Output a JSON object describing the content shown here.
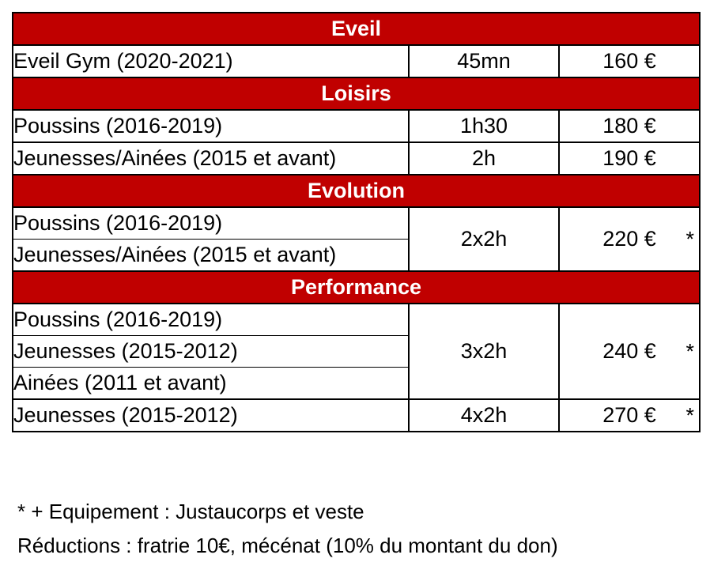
{
  "sections": [
    {
      "title": "Eveil",
      "rows": [
        {
          "name": "Eveil Gym (2020-2021)",
          "duration": "45mn",
          "price": "160 €",
          "asterisk": ""
        }
      ]
    },
    {
      "title": "Loisirs",
      "rows": [
        {
          "name": "Poussins (2016-2019)",
          "duration": "1h30",
          "price": "180 €",
          "asterisk": ""
        },
        {
          "name": "Jeunesses/Ainées (2015 et avant)",
          "duration": "2h",
          "price": "190 €",
          "asterisk": ""
        }
      ]
    },
    {
      "title": "Evolution",
      "groups": [
        {
          "names": [
            "Poussins (2016-2019)",
            "Jeunesses/Ainées (2015 et avant)"
          ],
          "duration": "2x2h",
          "price": "220 €",
          "asterisk": "*"
        }
      ]
    },
    {
      "title": "Performance",
      "groups": [
        {
          "names": [
            "Poussins (2016-2019)",
            "Jeunesses (2015-2012)",
            "Ainées (2011 et avant)"
          ],
          "duration": "3x2h",
          "price": "240 €",
          "asterisk": "*"
        },
        {
          "names": [
            "Jeunesses (2015-2012)"
          ],
          "duration": "4x2h",
          "price": "270 €",
          "asterisk": "*"
        }
      ]
    }
  ],
  "footnotes": {
    "equipment": "* + Equipement : Justaucorps et veste",
    "reductions": "Réductions : fratrie 10€, mécénat (10% du montant du don)"
  },
  "colors": {
    "section_header_bg": "#c00000",
    "section_header_text": "#ffffff"
  }
}
